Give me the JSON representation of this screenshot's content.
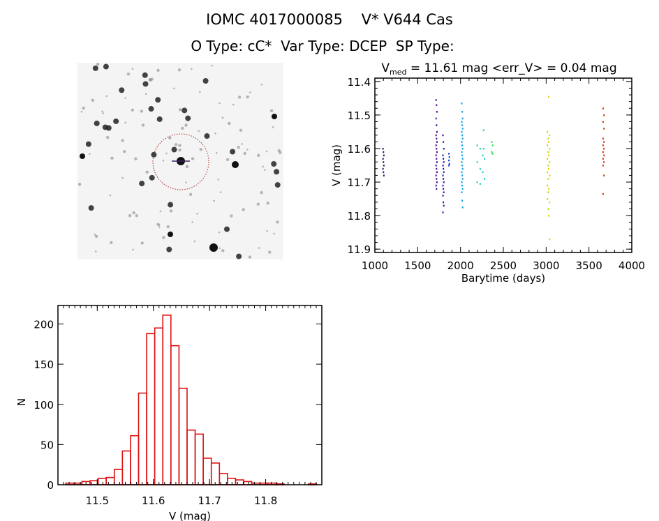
{
  "header": {
    "title": "IOMC 4017000085    V* V644 Cas",
    "subtitle": "O Type: cC*  Var Type: DCEP  SP Type:"
  },
  "image_panel": {
    "description_icon": "star-field-image",
    "circle_color": "#cc2222"
  },
  "chart_data": [
    {
      "type": "scatter",
      "title_main": "V",
      "title_sub": "med",
      "title_rest": " = 11.61 mag <err_V> = 0.04 mag",
      "xlabel": "Barytime (days)",
      "ylabel": "V (mag)",
      "xlim": [
        1000,
        4000
      ],
      "ylim": [
        11.39,
        11.91
      ],
      "y_inverted": true,
      "xticks": [
        "1000",
        "1500",
        "2000",
        "2500",
        "3000",
        "3500",
        "4000"
      ],
      "yticks": [
        "11.4",
        "11.5",
        "11.6",
        "11.7",
        "11.8",
        "11.9"
      ],
      "grid": false,
      "series": [
        {
          "color": "#3a0a6e",
          "t": [
            1095,
            1100,
            1105
          ],
          "v": [
            11.6,
            11.61,
            11.62,
            11.63,
            11.64,
            11.65,
            11.66,
            11.67,
            11.68
          ]
        },
        {
          "color": "#4b0a8c",
          "t": [
            1715,
            1720,
            1725
          ],
          "v": [
            11.455,
            11.47,
            11.49,
            11.51,
            11.53,
            11.55,
            11.56,
            11.57,
            11.58,
            11.59,
            11.6,
            11.61,
            11.62,
            11.63,
            11.64,
            11.65,
            11.66,
            11.67,
            11.68,
            11.69,
            11.7,
            11.71,
            11.72
          ]
        },
        {
          "color": "#3510a8",
          "t": [
            1795,
            1800,
            1805
          ],
          "v": [
            11.56,
            11.58,
            11.6,
            11.62,
            11.63,
            11.64,
            11.65,
            11.66,
            11.67,
            11.68,
            11.69,
            11.7,
            11.71,
            11.72,
            11.73,
            11.74,
            11.76,
            11.77,
            11.79
          ]
        },
        {
          "color": "#2038c8",
          "t": [
            1865,
            1870
          ],
          "v": [
            11.615,
            11.625,
            11.635,
            11.645,
            11.65
          ]
        },
        {
          "color": "#10a0e0",
          "t": [
            2015,
            2020,
            2025
          ],
          "v": [
            11.465,
            11.49,
            11.51,
            11.52,
            11.53,
            11.54,
            11.55,
            11.56,
            11.57,
            11.58,
            11.59,
            11.6,
            11.61,
            11.62,
            11.63,
            11.64,
            11.65,
            11.66,
            11.67,
            11.68,
            11.69,
            11.7,
            11.71,
            11.72,
            11.73,
            11.755,
            11.775
          ]
        },
        {
          "color": "#20d0c0",
          "t": [
            2195,
            2230,
            2260,
            2280
          ],
          "v": [
            11.59,
            11.6,
            11.62,
            11.63,
            11.64,
            11.66,
            11.67,
            11.69,
            11.7,
            11.705
          ]
        },
        {
          "color": "#22e048",
          "t": [
            2270,
            2365,
            2375
          ],
          "v": [
            11.545,
            11.58,
            11.59,
            11.6,
            11.61,
            11.615
          ]
        },
        {
          "color": "#b8e000",
          "t": [
            3015,
            3025
          ],
          "v": [
            11.55,
            11.57,
            11.59,
            11.61,
            11.63,
            11.65,
            11.67,
            11.69,
            11.71,
            11.73,
            11.75,
            11.78
          ]
        },
        {
          "color": "#f0c800",
          "t": [
            3030,
            3040
          ],
          "v": [
            11.445,
            11.56,
            11.58,
            11.6,
            11.62,
            11.64,
            11.66,
            11.68,
            11.72,
            11.76,
            11.8,
            11.87
          ]
        },
        {
          "color": "#e03010",
          "t": [
            3665,
            3675
          ],
          "v": [
            11.48,
            11.5,
            11.52,
            11.54,
            11.57,
            11.58,
            11.59,
            11.6,
            11.61,
            11.62,
            11.63,
            11.64,
            11.65,
            11.68,
            11.735
          ]
        }
      ]
    },
    {
      "type": "bar",
      "histogram": true,
      "xlabel": "V (mag)",
      "ylabel": "N",
      "xlim": [
        11.43,
        11.9
      ],
      "ylim": [
        0,
        223
      ],
      "xticks": [
        "11.5",
        "11.6",
        "11.7",
        "11.8"
      ],
      "yticks": [
        "0",
        "50",
        "100",
        "150",
        "200"
      ],
      "bin_start": 11.444,
      "bin_width": 0.0144,
      "values": [
        2,
        2,
        4,
        5,
        8,
        9,
        19,
        42,
        61,
        114,
        188,
        195,
        211,
        173,
        120,
        68,
        63,
        33,
        27,
        14,
        8,
        6,
        4,
        2,
        2,
        2,
        1,
        0,
        0,
        0,
        1
      ],
      "color": "#dd1111"
    }
  ]
}
